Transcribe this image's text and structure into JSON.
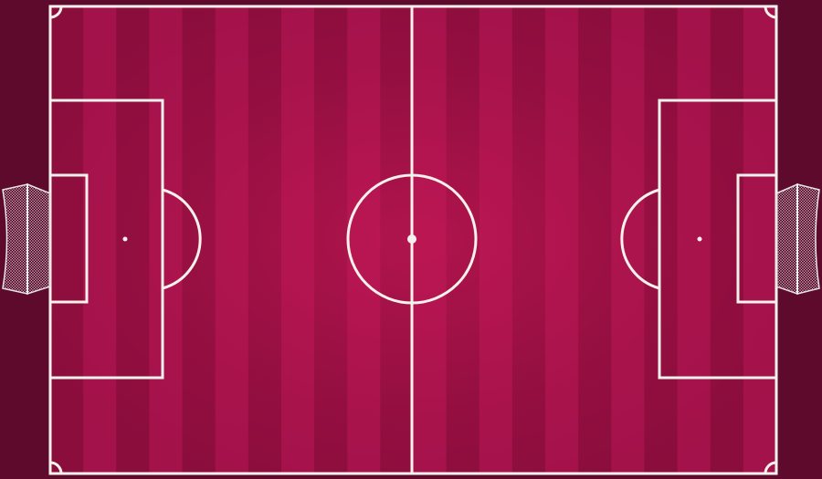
{
  "colors": {
    "surround": "#5e0a2c",
    "stripe_dark": "#8a0d3c",
    "stripe_light": "#a3124a",
    "glow_center": "#cf1a5a",
    "line": "#f5f1ec",
    "net": "#e6e6e6"
  },
  "pitch": {
    "stripe_count": 22
  },
  "icons": {
    "left_goal": "goal-net-icon",
    "right_goal": "goal-net-icon"
  }
}
